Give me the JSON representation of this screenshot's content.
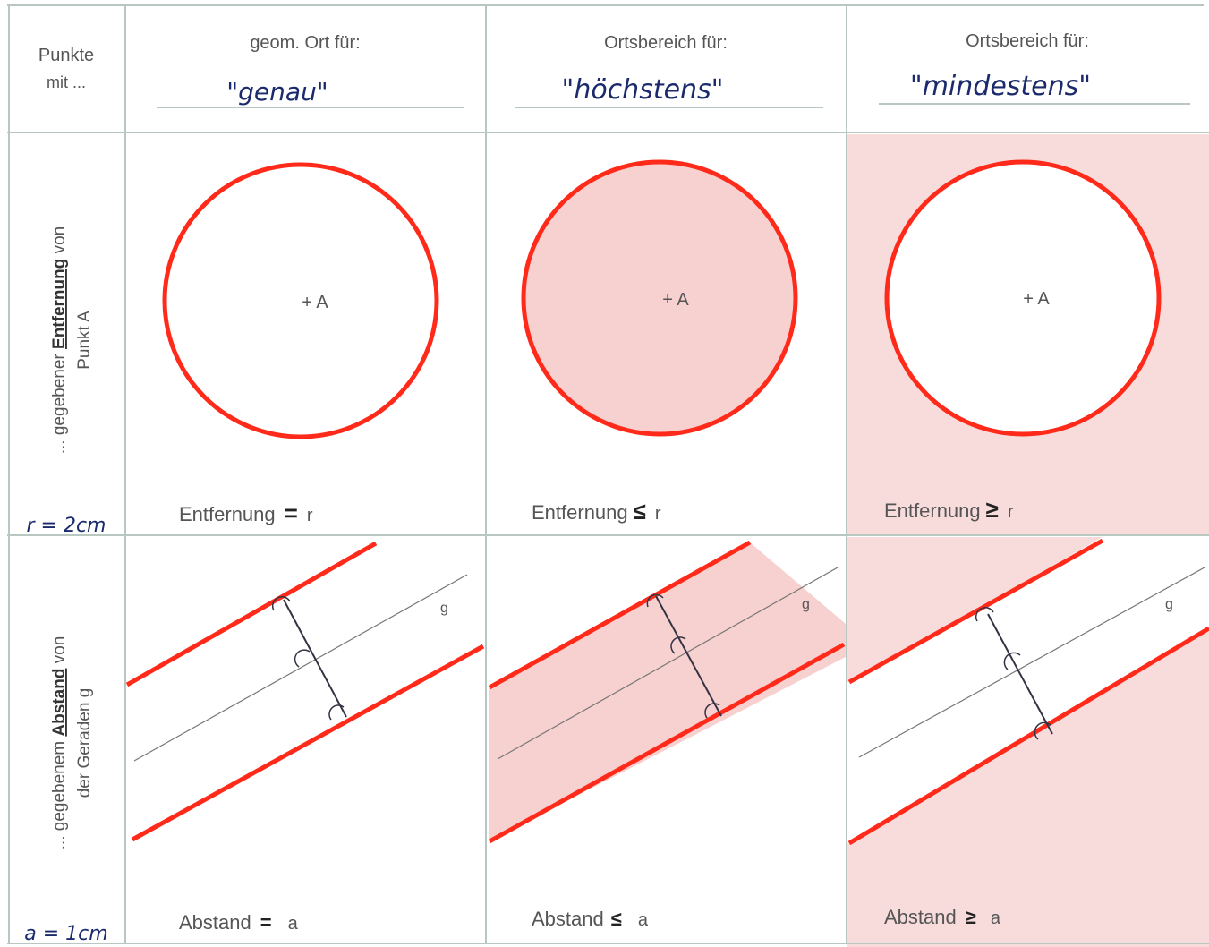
{
  "header": {
    "corner": [
      "Punkte",
      "mit ..."
    ],
    "columns": [
      {
        "printed": "geom. Ort für:",
        "handwritten": "\"genau\""
      },
      {
        "printed": "Ortsbereich für:",
        "handwritten": "\"höchstens\""
      },
      {
        "printed": "Ortsbereich für:",
        "handwritten": "\"mindestens\""
      }
    ]
  },
  "rows": [
    {
      "label_line1_prefix": "... gegebener ",
      "label_line1_keyword": "Entfernung",
      "label_line1_suffix": " von",
      "label_line2": "Punkt A",
      "handwritten_value": "r = 2cm",
      "point_label": "+ A",
      "captions": [
        "Entfernung",
        "Entfernung",
        "Entfernung"
      ],
      "relations": [
        "=",
        "≤",
        "≥"
      ],
      "variable": "r"
    },
    {
      "label_line1_prefix": "... gegebenem ",
      "label_line1_keyword": "Abstand",
      "label_line1_suffix": " von",
      "label_line2": "der Geraden g",
      "handwritten_value": "a = 1cm",
      "line_label": "g",
      "captions": [
        "Abstand",
        "Abstand",
        "Abstand"
      ],
      "relations": [
        "=",
        "≤",
        "≥"
      ],
      "variable": "a"
    }
  ],
  "colors": {
    "highlight_red": "#ff2a1a",
    "shading_pink": "#f7d0d0",
    "grid_line": "#b8c8c0",
    "handwriting_ink": "#1a2a6c"
  }
}
